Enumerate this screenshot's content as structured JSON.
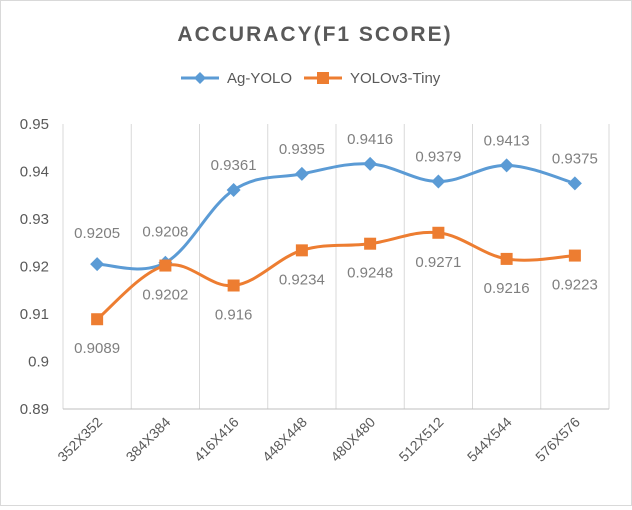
{
  "chart_data": {
    "type": "line",
    "title": "ACCURACY(F1 SCORE)",
    "categories": [
      "352X352",
      "384X384",
      "416X416",
      "448X448",
      "480X480",
      "512X512",
      "544X544",
      "576X576"
    ],
    "series": [
      {
        "name": "Ag-YOLO",
        "color": "#5b9bd5",
        "marker": "diamond",
        "values": [
          0.9205,
          0.9208,
          0.9361,
          0.9395,
          0.9416,
          0.9379,
          0.9413,
          0.9375
        ],
        "labels": [
          "0.9205",
          "0.9208",
          "0.9361",
          "0.9395",
          "0.9416",
          "0.9379",
          "0.9413",
          "0.9375"
        ]
      },
      {
        "name": "YOLOv3-Tiny",
        "color": "#ed7d31",
        "marker": "square",
        "values": [
          0.9089,
          0.9202,
          0.916,
          0.9234,
          0.9248,
          0.9271,
          0.9216,
          0.9223
        ],
        "labels": [
          "0.9089",
          "0.9202",
          "0.916",
          "0.9234",
          "0.9248",
          "0.9271",
          "0.9216",
          "0.9223"
        ]
      }
    ],
    "ylim": [
      0.89,
      0.95
    ],
    "yticks": [
      "0.89",
      "0.9",
      "0.91",
      "0.92",
      "0.93",
      "0.94",
      "0.95"
    ],
    "xlabel": "",
    "ylabel": "",
    "legend": "top-center",
    "grid": "vertical",
    "smooth": true
  }
}
